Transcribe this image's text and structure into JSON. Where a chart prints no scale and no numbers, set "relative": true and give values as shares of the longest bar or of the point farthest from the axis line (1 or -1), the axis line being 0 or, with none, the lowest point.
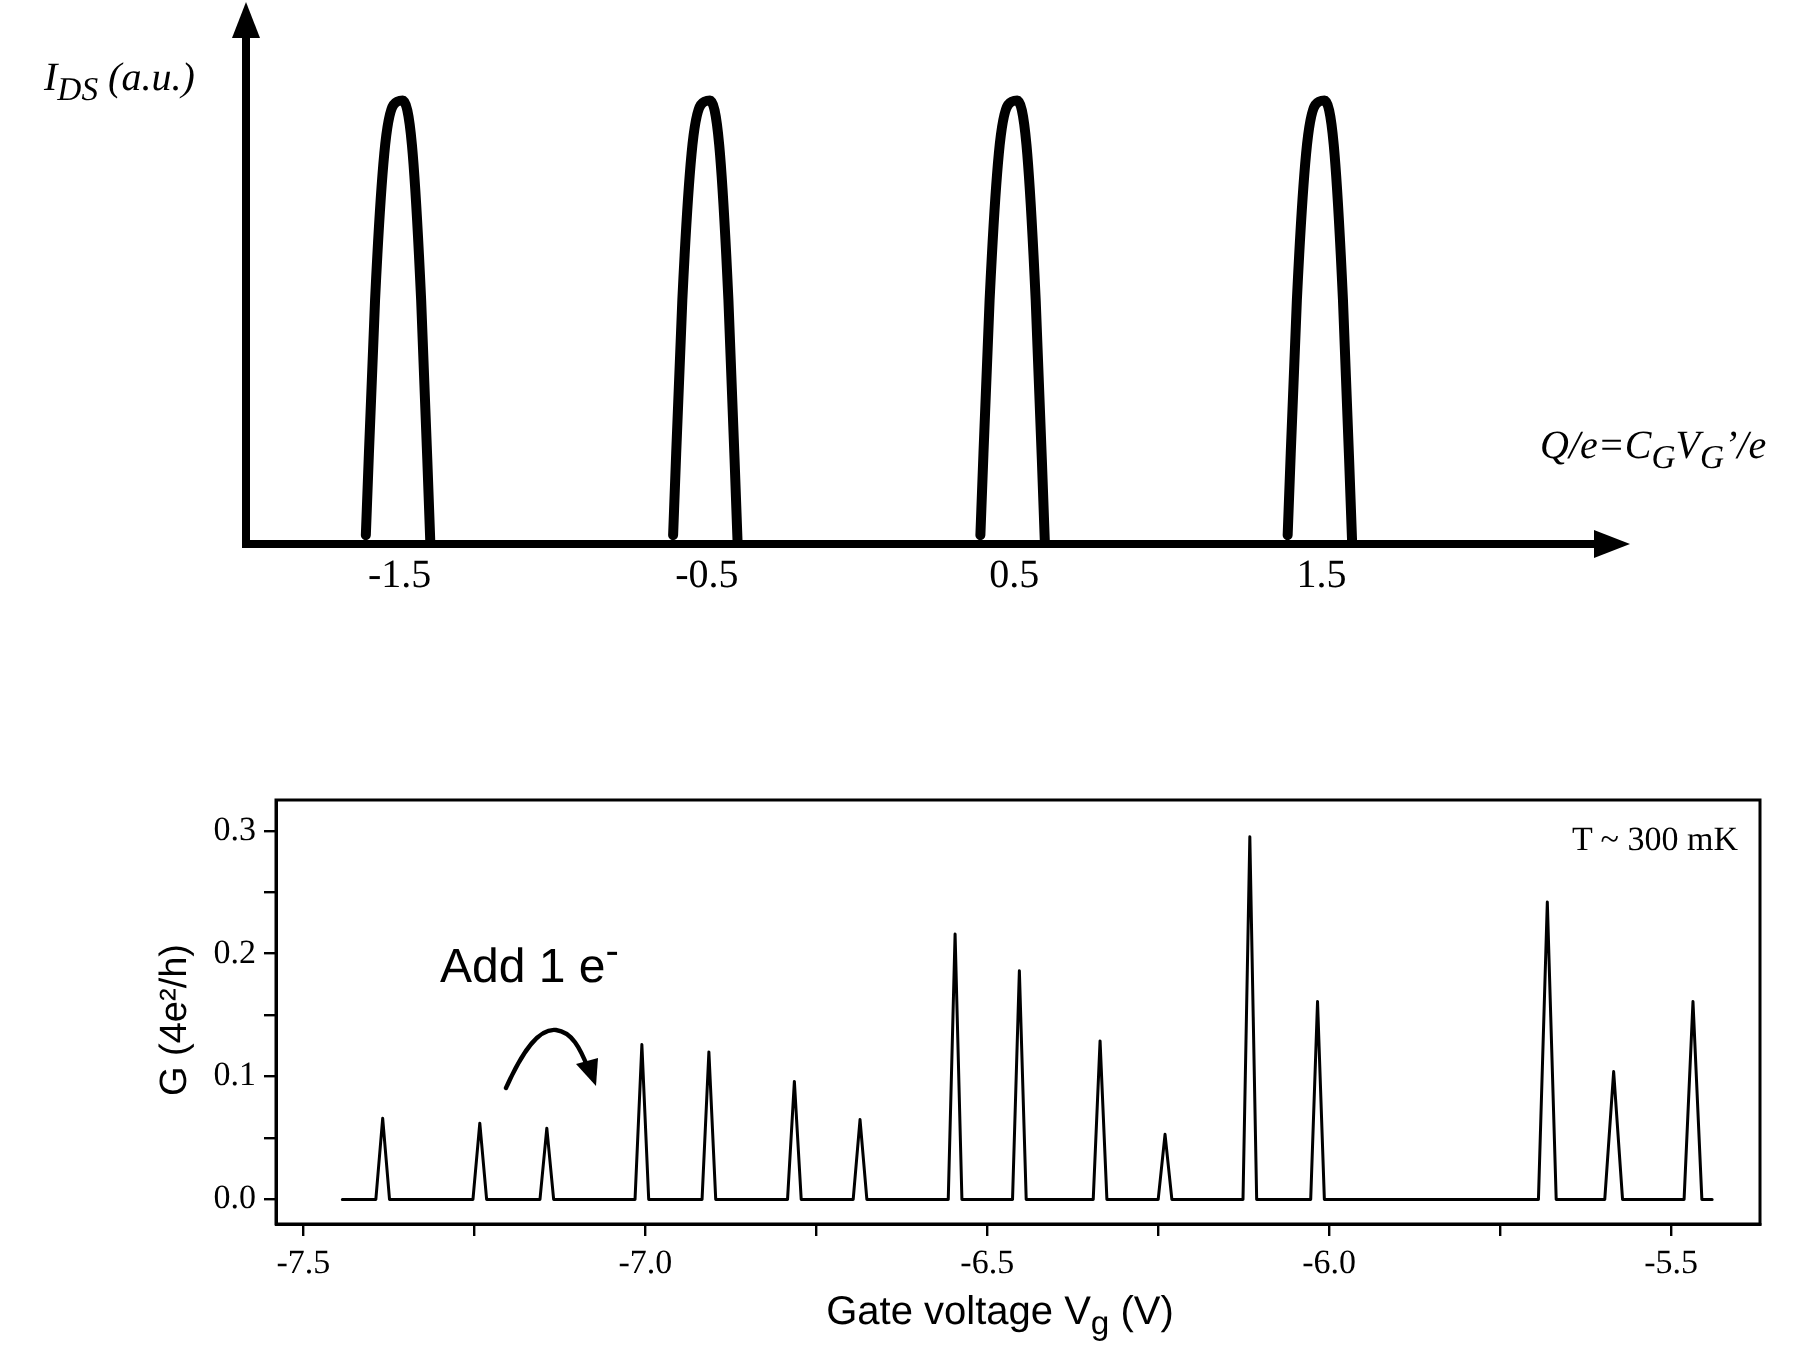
{
  "chart_data": [
    {
      "type": "line",
      "relative": true,
      "ylabel": "I$_{DS}$ (a.u.)",
      "xlabel": "Q/e=C$_{G}$V$_{G}$’/e",
      "xlim": [
        -2,
        2.4
      ],
      "xticks": [
        -1.5,
        -0.5,
        0.5,
        1.5
      ],
      "tick_labels": "x",
      "grid": false,
      "legend": false,
      "series": [
        {
          "color": "#000000",
          "x": [
            -1.61,
            -1.58,
            -1.55,
            -1.52,
            -1.49,
            -1.46,
            -1.43,
            -1.4,
            -1.0,
            -0.61,
            -0.58,
            -0.55,
            -0.52,
            -0.49,
            -0.46,
            -0.43,
            -0.4,
            0.0,
            0.39,
            0.42,
            0.45,
            0.48,
            0.51,
            0.54,
            0.57,
            0.6,
            1.0,
            1.39,
            1.42,
            1.45,
            1.48,
            1.51,
            1.54,
            1.57,
            1.6
          ],
          "values": [
            0.02,
            0.55,
            0.88,
            0.99,
            1,
            0.9,
            0.55,
            0,
            null,
            0.02,
            0.55,
            0.88,
            0.99,
            1,
            0.9,
            0.55,
            0,
            null,
            0.02,
            0.55,
            0.88,
            0.99,
            1,
            0.9,
            0.55,
            0,
            null,
            0.02,
            0.55,
            0.88,
            0.99,
            1,
            0.9,
            0.55,
            0
          ]
        }
      ]
    },
    {
      "type": "line",
      "ylabel": "G (4e²/h)",
      "xlabel": "Gate voltage V$_{g}$ (V)",
      "xlim": [
        -7.54,
        -5.37
      ],
      "ylim": [
        -0.02,
        0.325
      ],
      "xticks": [
        {
          "value": -7.5,
          "label": "-7.5"
        },
        {
          "value": -7.25,
          "label": null
        },
        {
          "value": -7,
          "label": "-7.0"
        },
        {
          "value": -6.75,
          "label": null
        },
        {
          "value": -6.5,
          "label": "-6.5"
        },
        {
          "value": -6.25,
          "label": null
        },
        {
          "value": -6,
          "label": "-6.0"
        },
        {
          "value": -5.75,
          "label": null
        },
        {
          "value": -5.5,
          "label": "-5.5"
        }
      ],
      "yticks": [
        {
          "value": 0,
          "label": "0.0"
        },
        {
          "value": 0.05,
          "label": null
        },
        0.1,
        {
          "value": 0.15,
          "label": null
        },
        0.2,
        {
          "value": 0.25,
          "label": null
        },
        0.3
      ],
      "grid": false,
      "legend": false,
      "annotations": [
        "T ~ 300 mK",
        "Add 1 e$^{-}$"
      ],
      "series": [
        {
          "color": "#000000",
          "x": [
            -7.443,
            -7.394,
            -7.384,
            -7.374,
            -7.252,
            -7.242,
            -7.232,
            -7.154,
            -7.144,
            -7.134,
            -7.015,
            -7.005,
            -6.995,
            -6.917,
            -6.907,
            -6.897,
            -6.792,
            -6.782,
            -6.772,
            -6.696,
            -6.686,
            -6.676,
            -6.557,
            -6.547,
            -6.537,
            -6.463,
            -6.453,
            -6.443,
            -6.345,
            -6.335,
            -6.325,
            -6.25,
            -6.24,
            -6.23,
            -6.126,
            -6.116,
            -6.106,
            -6.027,
            -6.017,
            -6.007,
            -5.694,
            -5.681,
            -5.668,
            -5.597,
            -5.584,
            -5.571,
            -5.481,
            -5.468,
            -5.455,
            -5.44
          ],
          "values": [
            0,
            0,
            0.066,
            0,
            0,
            0.062,
            0,
            0,
            0.058,
            0,
            0,
            0.126,
            0,
            0,
            0.12,
            0,
            0,
            0.096,
            0,
            0,
            0.065,
            0,
            0,
            0.216,
            0,
            0,
            0.186,
            0,
            0,
            0.129,
            0,
            0,
            0.053,
            0,
            0,
            0.295,
            0,
            0,
            0.161,
            0,
            0,
            0.242,
            0,
            0,
            0.104,
            0,
            0,
            0.161,
            0,
            0
          ]
        }
      ]
    }
  ]
}
